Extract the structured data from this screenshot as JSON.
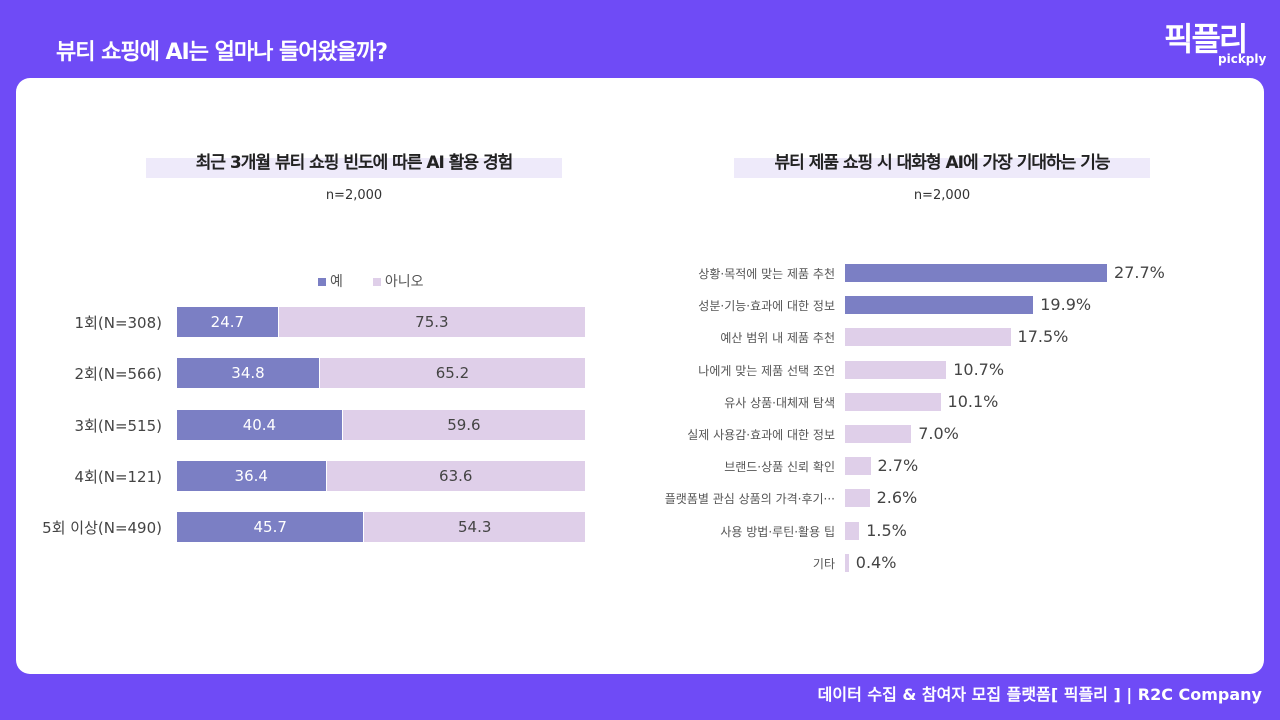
{
  "header": {
    "title": "뷰티 쇼핑에 AI는 얼마나 들어왔을까?",
    "logo": "픽플리",
    "logo_sub": "pickply"
  },
  "footer": "데이터 수집 & 참여자 모집 플랫폼[ 픽플리 ]  |  R2C Company",
  "colors": {
    "background": "#6f4bf6",
    "yes": "#7b7fc4",
    "no": "#dfcfe9",
    "highlight": "#7b7fc4"
  },
  "chart_data": [
    {
      "type": "bar",
      "orientation": "horizontal",
      "stacked": true,
      "title": "최근 3개월 뷰티 쇼핑 빈도에 따른 AI 활용 경험",
      "subtitle": "n=2,000",
      "categories": [
        "1회(N=308)",
        "2회(N=566)",
        "3회(N=515)",
        "4회(N=121)",
        "5회 이상(N=490)"
      ],
      "series": [
        {
          "name": "예",
          "values": [
            24.7,
            34.8,
            40.4,
            36.4,
            45.7
          ]
        },
        {
          "name": "아니오",
          "values": [
            75.3,
            65.2,
            59.6,
            63.6,
            54.3
          ]
        }
      ],
      "legend": "top"
    },
    {
      "type": "bar",
      "orientation": "horizontal",
      "title": "뷰티 제품 쇼핑 시 대화형 AI에 가장 기대하는 기능",
      "subtitle": "n=2,000",
      "categories": [
        "상황·목적에 맞는 제품 추천",
        "성분·기능·효과에 대한 정보",
        "예산 범위 내 제품 추천",
        "나에게 맞는 제품 선택 조언",
        "유사 상품·대체재 탐색",
        "실제 사용감·효과에 대한 정보",
        "브랜드·상품 신뢰 확인",
        "플랫폼별 관심 상품의 가격·후기···",
        "사용 방법·루틴·활용 팁",
        "기타"
      ],
      "values": [
        27.7,
        19.9,
        17.5,
        10.7,
        10.1,
        7.0,
        2.7,
        2.6,
        1.5,
        0.4
      ],
      "labels": [
        "27.7%",
        "19.9%",
        "17.5%",
        "10.7%",
        "10.1%",
        "7.0%",
        "2.7%",
        "2.6%",
        "1.5%",
        "0.4%"
      ],
      "highlighted_top": 2
    }
  ]
}
